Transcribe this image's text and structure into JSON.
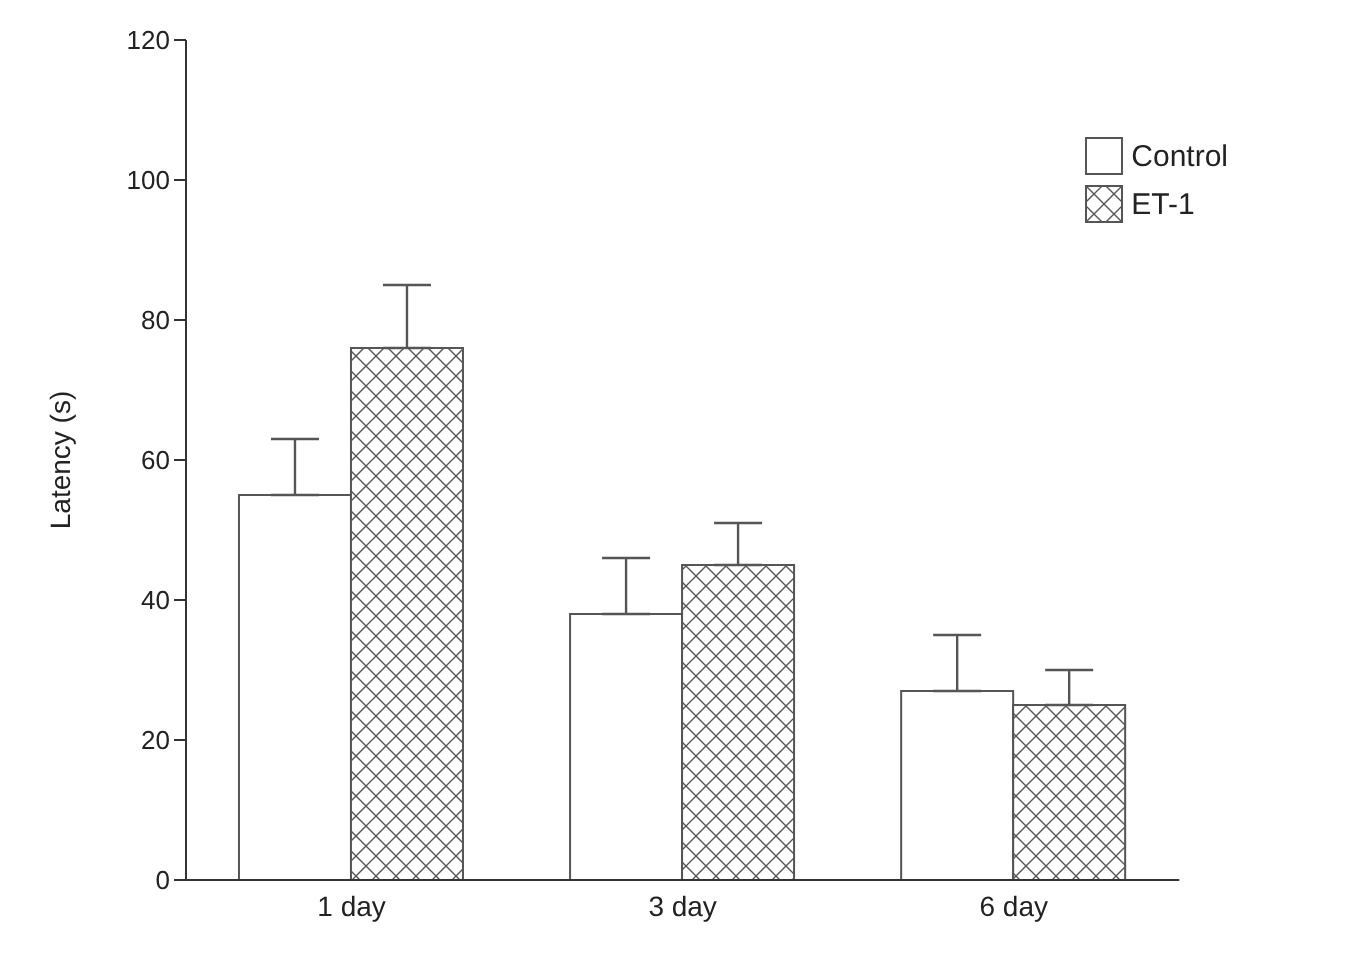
{
  "chart_data": {
    "type": "bar",
    "ylabel": "Latency (s)",
    "categories": [
      "1 day",
      "3 day",
      "6 day"
    ],
    "series": [
      {
        "name": "Control",
        "color": "#ffffff",
        "values": [
          55,
          38,
          27
        ],
        "errors": [
          [
            55,
            63
          ],
          [
            38,
            46
          ],
          [
            27,
            35
          ]
        ]
      },
      {
        "name": "ET-1",
        "color": "#555555",
        "values": [
          76,
          45,
          25
        ],
        "errors": [
          [
            76,
            85
          ],
          [
            45,
            51
          ],
          [
            25,
            30
          ]
        ]
      }
    ],
    "ylim": [
      0,
      120
    ],
    "yticks": [
      0,
      20,
      40,
      60,
      80,
      100,
      120
    ],
    "grid": false,
    "legend": "top right"
  }
}
